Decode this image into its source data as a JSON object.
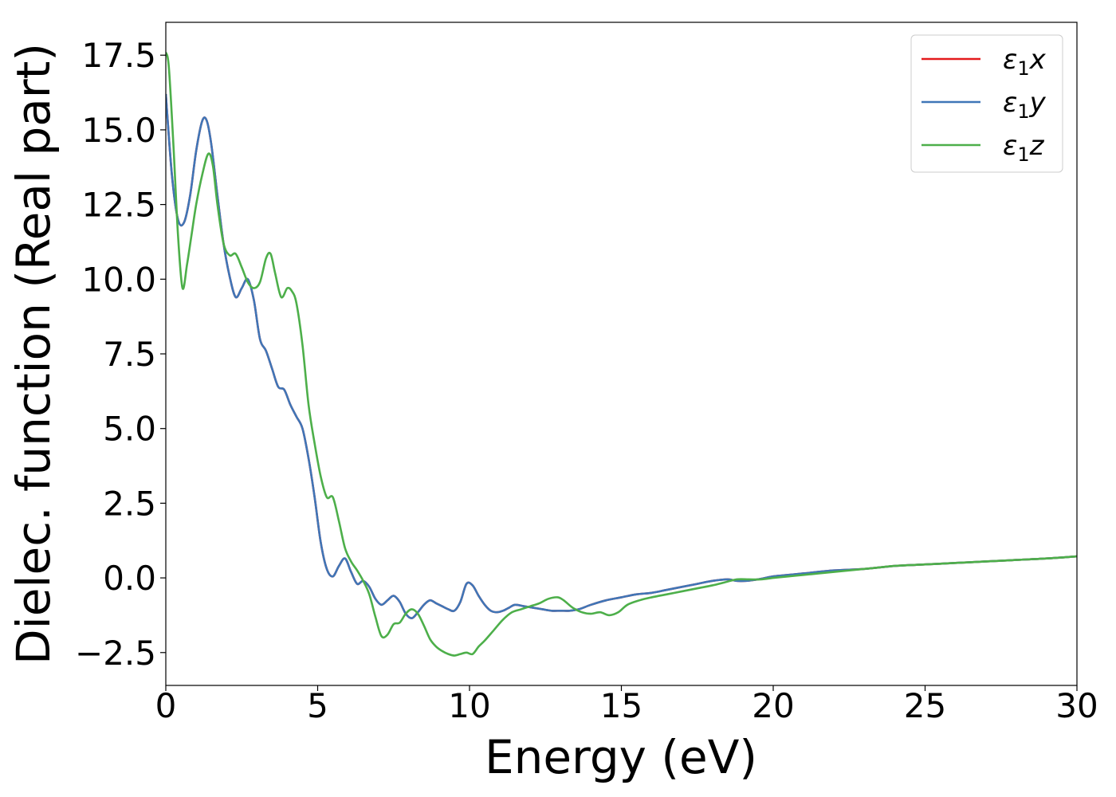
{
  "chart_data": {
    "type": "line",
    "xlabel": "Energy (eV)",
    "ylabel": "Dielec. function (Real part)",
    "xlim": [
      0,
      30
    ],
    "ylim": [
      -3.6,
      18.6
    ],
    "xticks": [
      "0",
      "5",
      "10",
      "15",
      "20",
      "25",
      "30"
    ],
    "yticks": [
      "−2.5",
      "0.0",
      "2.5",
      "5.0",
      "7.5",
      "10.0",
      "12.5",
      "15.0",
      "17.5"
    ],
    "grid": false,
    "legend_position": "top-right",
    "series": [
      {
        "name": "ε₁x",
        "legend_sym": "ε",
        "legend_sub": "1",
        "legend_var": "x",
        "color": "#e41a1c",
        "x": [
          0,
          0.2,
          0.4,
          0.6,
          0.8,
          1.0,
          1.2,
          1.35,
          1.5,
          1.7,
          1.9,
          2.1,
          2.3,
          2.5,
          2.7,
          2.9,
          3.1,
          3.3,
          3.5,
          3.7,
          3.9,
          4.1,
          4.3,
          4.5,
          4.7,
          4.9,
          5.1,
          5.3,
          5.5,
          5.7,
          5.9,
          6.1,
          6.3,
          6.5,
          6.7,
          6.9,
          7.1,
          7.3,
          7.5,
          7.7,
          7.9,
          8.1,
          8.3,
          8.5,
          8.7,
          8.9,
          9.1,
          9.3,
          9.5,
          9.7,
          9.9,
          10.1,
          10.3,
          10.5,
          10.7,
          10.9,
          11.1,
          11.3,
          11.5,
          11.8,
          12.1,
          12.4,
          12.7,
          13.0,
          13.3,
          13.6,
          14.0,
          14.5,
          15.0,
          15.5,
          16.0,
          16.5,
          17.0,
          17.5,
          18.0,
          18.5,
          18.8,
          19.1,
          19.5,
          20.0,
          20.5,
          21.0,
          22.0,
          23.0,
          24.0,
          25.0,
          26.0,
          27.0,
          28.0,
          29.0,
          30.0
        ],
        "y": [
          16.2,
          13.5,
          12.0,
          11.9,
          12.8,
          14.3,
          15.3,
          15.3,
          14.5,
          12.8,
          11.2,
          10.1,
          9.4,
          9.7,
          10.0,
          9.3,
          8.0,
          7.6,
          7.0,
          6.4,
          6.3,
          5.8,
          5.4,
          5.0,
          4.0,
          2.7,
          1.2,
          0.3,
          0.05,
          0.4,
          0.65,
          0.2,
          -0.2,
          -0.1,
          -0.3,
          -0.7,
          -0.9,
          -0.75,
          -0.6,
          -0.8,
          -1.2,
          -1.35,
          -1.15,
          -0.9,
          -0.75,
          -0.85,
          -0.95,
          -1.05,
          -1.1,
          -0.8,
          -0.2,
          -0.25,
          -0.6,
          -0.9,
          -1.1,
          -1.15,
          -1.1,
          -1.0,
          -0.9,
          -0.95,
          -1.0,
          -1.05,
          -1.1,
          -1.1,
          -1.1,
          -1.05,
          -0.9,
          -0.75,
          -0.65,
          -0.55,
          -0.5,
          -0.4,
          -0.3,
          -0.2,
          -0.1,
          -0.05,
          -0.1,
          -0.1,
          -0.05,
          0.05,
          0.1,
          0.15,
          0.25,
          0.3,
          0.4,
          0.45,
          0.5,
          0.55,
          0.6,
          0.65,
          0.72
        ]
      },
      {
        "name": "ε₁y",
        "legend_sym": "ε",
        "legend_sub": "1",
        "legend_var": "y",
        "color": "#3f76b7",
        "x": [
          0,
          0.2,
          0.4,
          0.6,
          0.8,
          1.0,
          1.2,
          1.35,
          1.5,
          1.7,
          1.9,
          2.1,
          2.3,
          2.5,
          2.7,
          2.9,
          3.1,
          3.3,
          3.5,
          3.7,
          3.9,
          4.1,
          4.3,
          4.5,
          4.7,
          4.9,
          5.1,
          5.3,
          5.5,
          5.7,
          5.9,
          6.1,
          6.3,
          6.5,
          6.7,
          6.9,
          7.1,
          7.3,
          7.5,
          7.7,
          7.9,
          8.1,
          8.3,
          8.5,
          8.7,
          8.9,
          9.1,
          9.3,
          9.5,
          9.7,
          9.9,
          10.1,
          10.3,
          10.5,
          10.7,
          10.9,
          11.1,
          11.3,
          11.5,
          11.8,
          12.1,
          12.4,
          12.7,
          13.0,
          13.3,
          13.6,
          14.0,
          14.5,
          15.0,
          15.5,
          16.0,
          16.5,
          17.0,
          17.5,
          18.0,
          18.5,
          18.8,
          19.1,
          19.5,
          20.0,
          20.5,
          21.0,
          22.0,
          23.0,
          24.0,
          25.0,
          26.0,
          27.0,
          28.0,
          29.0,
          30.0
        ],
        "y": [
          16.2,
          13.5,
          12.0,
          11.9,
          12.8,
          14.3,
          15.3,
          15.3,
          14.5,
          12.8,
          11.2,
          10.1,
          9.4,
          9.7,
          10.0,
          9.3,
          8.0,
          7.6,
          7.0,
          6.4,
          6.3,
          5.8,
          5.4,
          5.0,
          4.0,
          2.7,
          1.2,
          0.3,
          0.05,
          0.4,
          0.65,
          0.2,
          -0.2,
          -0.1,
          -0.3,
          -0.7,
          -0.9,
          -0.75,
          -0.6,
          -0.8,
          -1.2,
          -1.35,
          -1.15,
          -0.9,
          -0.75,
          -0.85,
          -0.95,
          -1.05,
          -1.1,
          -0.8,
          -0.2,
          -0.25,
          -0.6,
          -0.9,
          -1.1,
          -1.15,
          -1.1,
          -1.0,
          -0.9,
          -0.95,
          -1.0,
          -1.05,
          -1.1,
          -1.1,
          -1.1,
          -1.05,
          -0.9,
          -0.75,
          -0.65,
          -0.55,
          -0.5,
          -0.4,
          -0.3,
          -0.2,
          -0.1,
          -0.05,
          -0.1,
          -0.1,
          -0.05,
          0.05,
          0.1,
          0.15,
          0.25,
          0.3,
          0.4,
          0.45,
          0.5,
          0.55,
          0.6,
          0.65,
          0.72
        ]
      },
      {
        "name": "ε₁z",
        "legend_sym": "ε",
        "legend_sub": "1",
        "legend_var": "z",
        "color": "#4daf4a",
        "x": [
          0,
          0.1,
          0.25,
          0.4,
          0.55,
          0.7,
          0.85,
          1.0,
          1.2,
          1.4,
          1.55,
          1.7,
          1.9,
          2.1,
          2.3,
          2.5,
          2.7,
          2.9,
          3.1,
          3.3,
          3.45,
          3.6,
          3.8,
          4.0,
          4.15,
          4.3,
          4.5,
          4.7,
          4.9,
          5.1,
          5.3,
          5.5,
          5.7,
          5.9,
          6.1,
          6.3,
          6.5,
          6.7,
          6.9,
          7.1,
          7.3,
          7.5,
          7.7,
          7.9,
          8.1,
          8.3,
          8.5,
          8.7,
          8.9,
          9.1,
          9.3,
          9.5,
          9.7,
          9.9,
          10.1,
          10.3,
          10.5,
          10.8,
          11.1,
          11.4,
          11.7,
          12.0,
          12.3,
          12.6,
          12.9,
          13.1,
          13.4,
          13.7,
          14.0,
          14.3,
          14.6,
          14.9,
          15.2,
          15.6,
          16.0,
          16.5,
          17.0,
          17.5,
          18.0,
          18.4,
          18.8,
          19.2,
          19.6,
          20.0,
          20.5,
          21.0,
          21.5,
          22.0,
          22.5,
          23.0,
          23.5,
          24.0,
          25.0,
          26.0,
          27.0,
          28.0,
          29.0,
          30.0
        ],
        "y": [
          17.6,
          17.1,
          14.5,
          11.5,
          9.7,
          10.5,
          11.5,
          12.5,
          13.5,
          14.2,
          13.8,
          12.5,
          11.2,
          10.8,
          10.85,
          10.4,
          9.9,
          9.7,
          9.9,
          10.7,
          10.85,
          10.2,
          9.4,
          9.7,
          9.6,
          9.2,
          7.8,
          5.8,
          4.5,
          3.4,
          2.7,
          2.7,
          1.9,
          1.0,
          0.55,
          0.25,
          -0.1,
          -0.55,
          -1.3,
          -1.95,
          -1.9,
          -1.55,
          -1.5,
          -1.2,
          -1.05,
          -1.2,
          -1.6,
          -2.05,
          -2.3,
          -2.45,
          -2.55,
          -2.6,
          -2.55,
          -2.5,
          -2.55,
          -2.3,
          -2.1,
          -1.75,
          -1.4,
          -1.15,
          -1.05,
          -0.95,
          -0.85,
          -0.7,
          -0.65,
          -0.75,
          -1.0,
          -1.15,
          -1.2,
          -1.15,
          -1.25,
          -1.15,
          -0.9,
          -0.75,
          -0.65,
          -0.55,
          -0.45,
          -0.35,
          -0.25,
          -0.15,
          -0.05,
          -0.05,
          -0.05,
          0.0,
          0.05,
          0.1,
          0.15,
          0.2,
          0.25,
          0.3,
          0.35,
          0.4,
          0.45,
          0.5,
          0.55,
          0.6,
          0.65,
          0.72
        ]
      }
    ]
  }
}
